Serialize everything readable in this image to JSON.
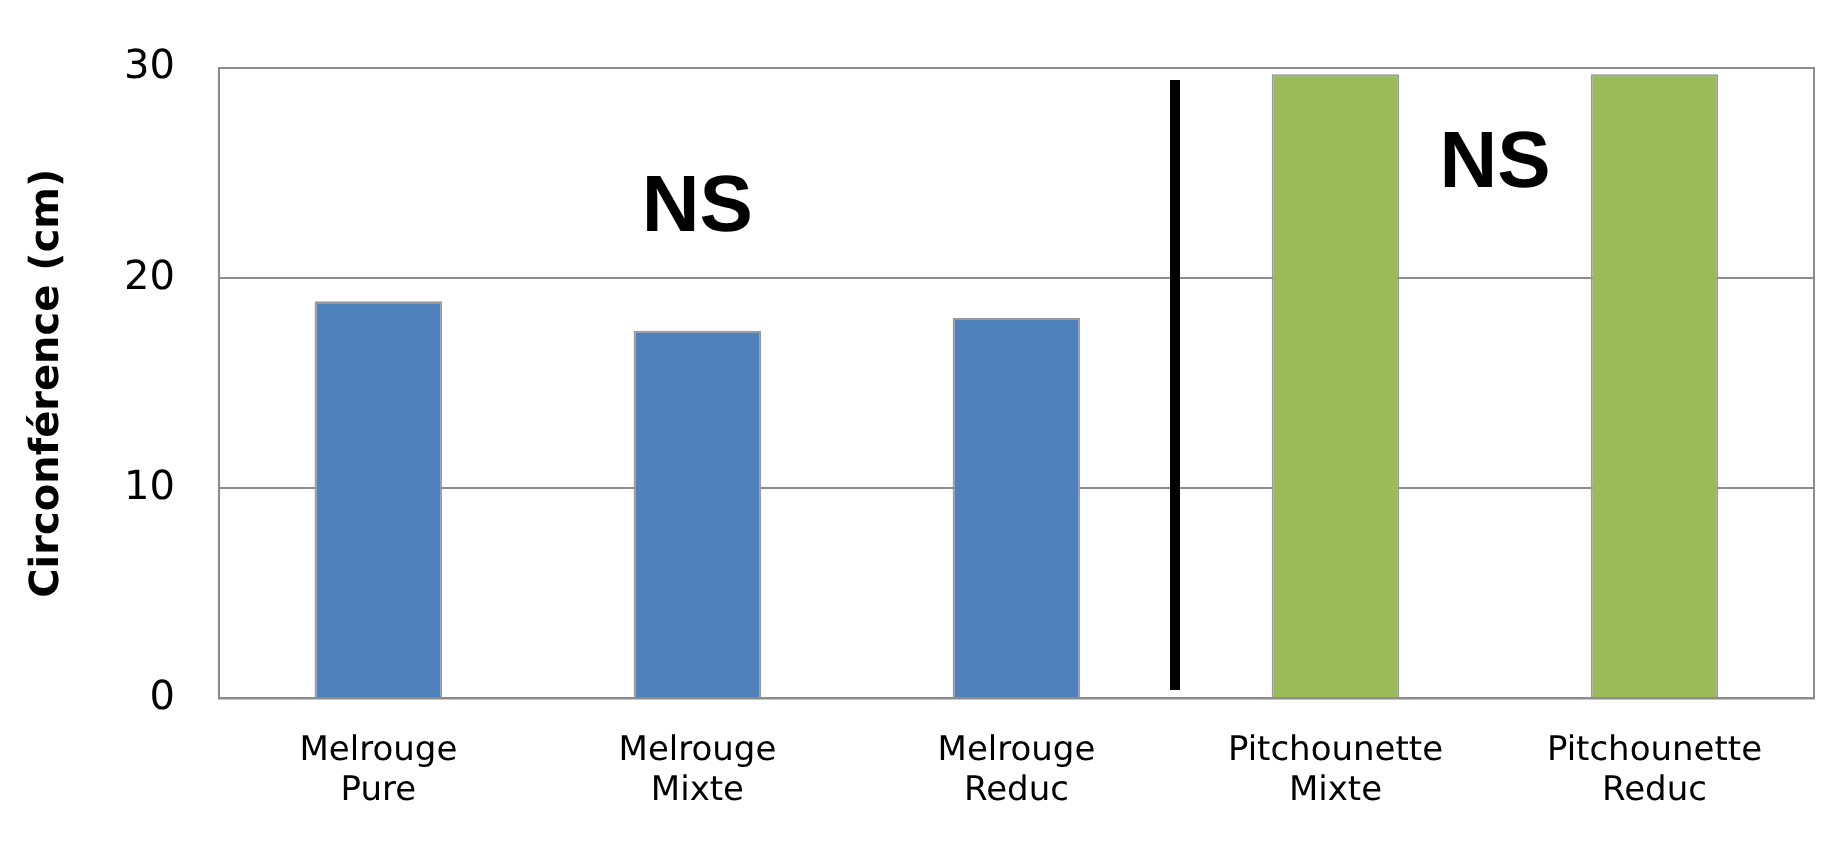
{
  "chart_data": {
    "type": "bar",
    "ylabel": "Circonférence (cm)",
    "categories": [
      "Melrouge Pure",
      "Melrouge Mixte",
      "Melrouge Reduc",
      "Pitchounette Mixte",
      "Pitchounette Reduc"
    ],
    "values": [
      18.9,
      17.5,
      18.1,
      29.7,
      29.7
    ],
    "colors": [
      "#4f81bd",
      "#4f81bd",
      "#4f81bd",
      "#9bbb59",
      "#9bbb59"
    ],
    "ylim": [
      0,
      30
    ],
    "yticks": [
      0,
      10,
      20,
      30
    ],
    "grid": "y",
    "legend": false,
    "annotations": [
      "NS",
      "NS"
    ]
  }
}
